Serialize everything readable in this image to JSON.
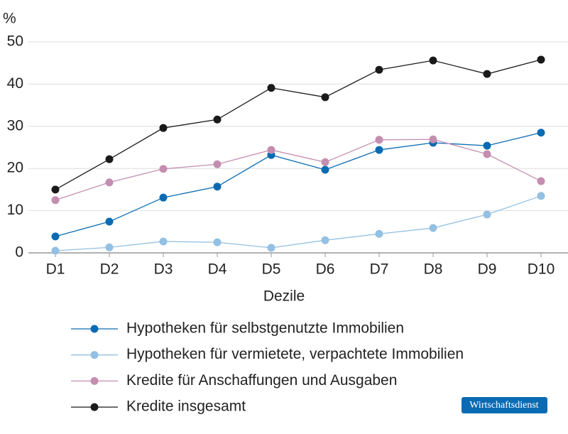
{
  "chart_data": {
    "type": "line",
    "y_label": "%",
    "x_label": "Dezile",
    "categories": [
      "D1",
      "D2",
      "D3",
      "D4",
      "D5",
      "D6",
      "D7",
      "D8",
      "D9",
      "D10"
    ],
    "series": [
      {
        "name": "Hypotheken für selbstgenutzte Immobilien",
        "color": "#0a6bb3",
        "values": [
          3.9,
          7.4,
          13.1,
          15.7,
          23.2,
          19.7,
          24.4,
          26.1,
          25.4,
          28.5
        ]
      },
      {
        "name": "Hypotheken für vermietete, verpachtete Immobilien",
        "color": "#93c0e3",
        "values": [
          0.5,
          1.3,
          2.7,
          2.5,
          1.2,
          3.0,
          4.5,
          5.9,
          9.1,
          13.5
        ]
      },
      {
        "name": "Kredite für Anschaffungen und Ausgaben",
        "color": "#c48eb0",
        "values": [
          12.5,
          16.7,
          19.9,
          21.0,
          24.4,
          21.5,
          26.8,
          26.9,
          23.4,
          17.0
        ]
      },
      {
        "name": "Kredite insgesamt",
        "color": "#1a1a1a",
        "values": [
          15.0,
          22.2,
          29.6,
          31.6,
          39.1,
          36.9,
          43.4,
          45.6,
          42.4,
          45.8
        ]
      }
    ],
    "ylim": [
      0,
      50
    ],
    "yticks": [
      0,
      10,
      20,
      30,
      40,
      50
    ],
    "grid": true
  },
  "badge": "Wirtschaftsdienst"
}
